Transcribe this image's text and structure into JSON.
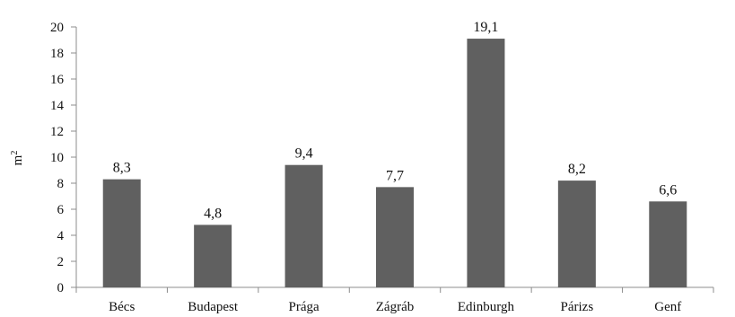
{
  "chart_data": {
    "type": "bar",
    "categories": [
      "Bécs",
      "Budapest",
      "Prága",
      "Zágráb",
      "Edinburgh",
      "Párizs",
      "Genf"
    ],
    "values": [
      8.3,
      4.8,
      9.4,
      7.7,
      19.1,
      8.2,
      6.6
    ],
    "data_labels": [
      "8,3",
      "4,8",
      "9,4",
      "7,7",
      "19,1",
      "8,2",
      "6,6"
    ],
    "ylabel": "m",
    "ylabel_superscript": "2",
    "ylim": [
      0,
      20
    ],
    "yticks": [
      0,
      2,
      4,
      6,
      8,
      10,
      12,
      14,
      16,
      18,
      20
    ],
    "grid": false,
    "bar_color": "#606060",
    "axis_color": "#8c8c8c"
  }
}
